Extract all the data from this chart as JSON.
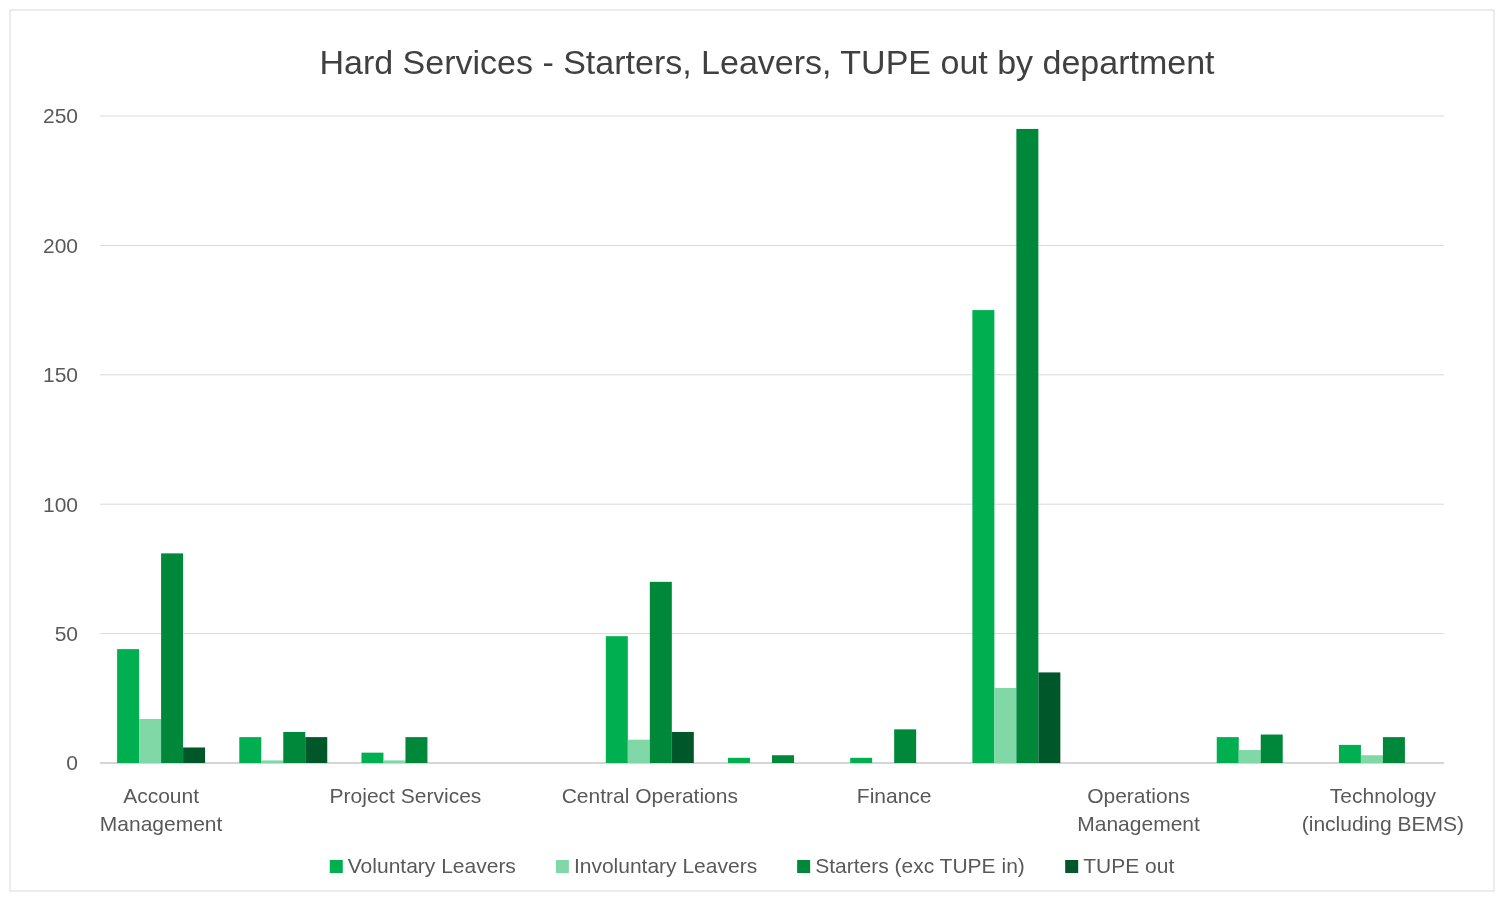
{
  "chart_data": {
    "type": "bar",
    "title": "Hard Services - Starters, Leavers, TUPE out by department",
    "categories": [
      "Account Management",
      null,
      "Project Services",
      null,
      "Central Operations",
      null,
      "Finance",
      null,
      "Operations Management",
      null,
      "Technology (including BEMS)"
    ],
    "series": [
      {
        "name": "Voluntary Leavers",
        "color": "#00b050",
        "values": [
          44,
          10,
          4,
          0,
          49,
          2,
          2,
          175,
          0,
          10,
          7
        ]
      },
      {
        "name": "Involuntary Leavers",
        "color": "#7fd8a6",
        "values": [
          17,
          1,
          1,
          0,
          9,
          0,
          0,
          29,
          0,
          5,
          3
        ]
      },
      {
        "name": "Starters (exc TUPE in)",
        "color": "#00883a",
        "values": [
          81,
          12,
          10,
          0,
          70,
          3,
          13,
          245,
          0,
          11,
          10
        ]
      },
      {
        "name": "TUPE out",
        "color": "#00572a",
        "values": [
          6,
          10,
          0,
          0,
          12,
          0,
          0,
          35,
          0,
          0,
          0
        ]
      }
    ],
    "ylim": [
      0,
      250
    ],
    "yticks": [
      0,
      50,
      100,
      150,
      200,
      250
    ],
    "grid": "y",
    "legend": "bottom"
  }
}
